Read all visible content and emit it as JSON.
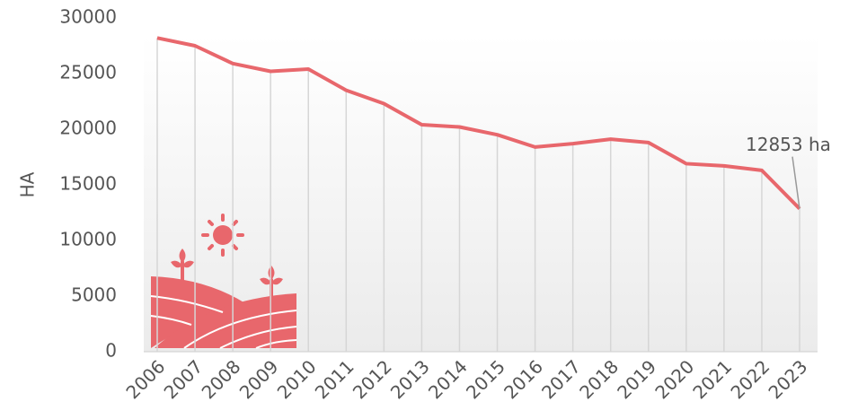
{
  "chart_data": {
    "type": "line",
    "y_label": "HA",
    "categories": [
      "2006",
      "2007",
      "2008",
      "2009",
      "2010",
      "2011",
      "2012",
      "2013",
      "2014",
      "2015",
      "2016",
      "2017",
      "2018",
      "2019",
      "2020",
      "2021",
      "2022",
      "2023"
    ],
    "values": [
      28200,
      27500,
      25900,
      25200,
      25400,
      23500,
      22300,
      20400,
      20200,
      19500,
      18400,
      18700,
      19100,
      18800,
      16900,
      16700,
      16300,
      12853
    ],
    "value_labels": [
      null,
      null,
      null,
      null,
      null,
      null,
      null,
      null,
      null,
      null,
      null,
      null,
      null,
      null,
      null,
      null,
      null,
      "12853 ha"
    ],
    "color": "#e8676c",
    "ylim": [
      0,
      30000
    ],
    "yticks": [
      0,
      5000,
      10000,
      15000,
      20000,
      25000,
      30000
    ],
    "grid": true
  }
}
